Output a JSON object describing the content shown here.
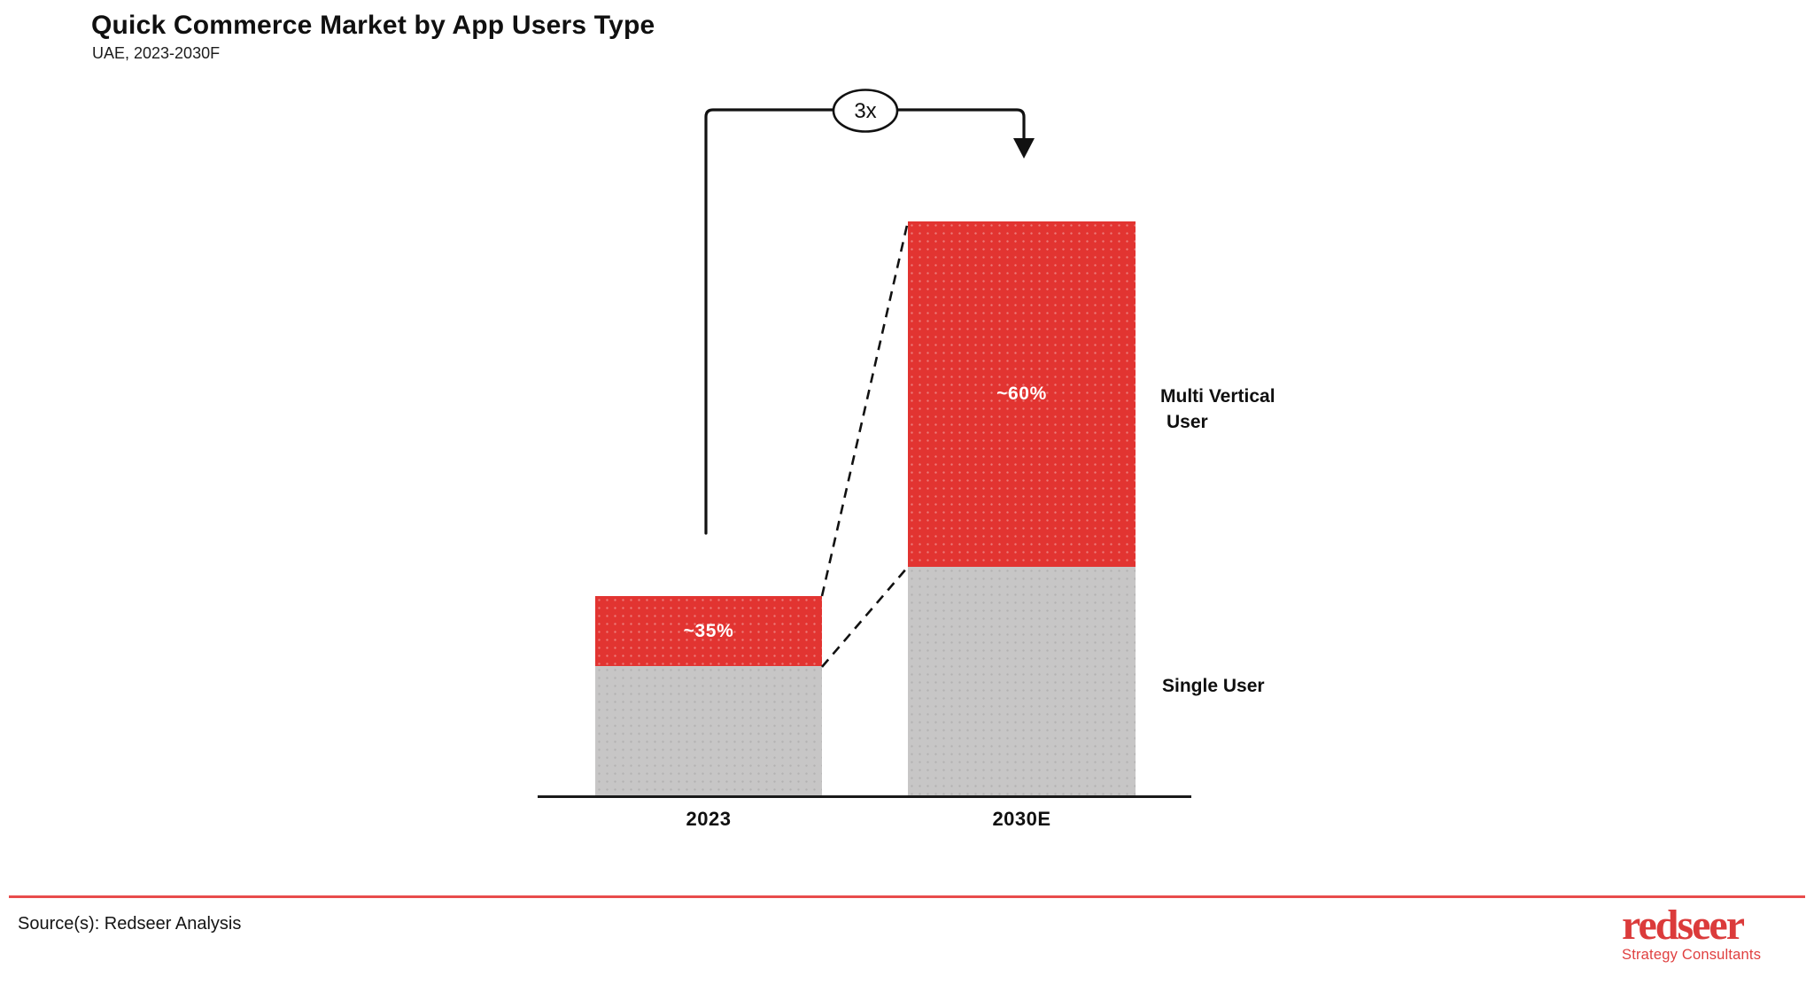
{
  "header": {
    "title": "Quick Commerce Market by App Users Type",
    "subtitle": "UAE, 2023-2030F"
  },
  "side_labels": {
    "multi_line1": "Multi Vertical",
    "multi_line2": "User",
    "single": "Single User"
  },
  "footer": {
    "source": "Source(s): Redseer Analysis",
    "logo_text": "redseer",
    "logo_tagline": "Strategy Consultants"
  },
  "colors": {
    "red": "#E23431",
    "gray": "#C7C6C6",
    "axis": "#1a1a1a",
    "divider": "#E84C4C",
    "logo_red": "#DB3B3B"
  },
  "chart_data": {
    "type": "bar",
    "stacked": true,
    "title": "Quick Commerce Market by App Users Type",
    "subtitle": "UAE, 2023-2030F",
    "categories": [
      "2023",
      "2030E"
    ],
    "series": [
      {
        "name": "Multi Vertical User",
        "color": "#E23431",
        "share_pct": [
          35,
          60
        ],
        "labels": [
          "~35%",
          "~60%"
        ]
      },
      {
        "name": "Single User",
        "color": "#C7C6C6",
        "share_pct": [
          65,
          40
        ],
        "labels": [
          "",
          ""
        ]
      }
    ],
    "total_relative": [
      1,
      2.86
    ],
    "growth_annotation": "3x",
    "xlabel": "",
    "ylabel": "",
    "grid": false,
    "legend_position": "right"
  }
}
